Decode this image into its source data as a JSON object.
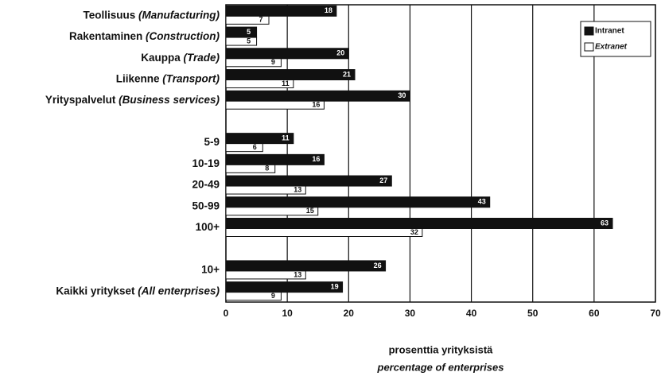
{
  "chart_data": {
    "type": "bar",
    "orientation": "horizontal",
    "categories": [
      {
        "fi": "Teollisuus",
        "en": "(Manufacturing)"
      },
      {
        "fi": "Rakentaminen",
        "en": "(Construction)"
      },
      {
        "fi": "Kauppa",
        "en": "(Trade)"
      },
      {
        "fi": "Liikenne",
        "en": "(Transport)"
      },
      {
        "fi": "Yrityspalvelut",
        "en": "(Business services)"
      },
      null,
      "5-9",
      "10-19",
      "20-49",
      "50-99",
      "100+",
      null,
      "10+",
      {
        "fi": "Kaikki yritykset",
        "en": "(All enterprises)"
      }
    ],
    "series": [
      {
        "name": "Intranet",
        "color": "#111111",
        "values": [
          18,
          5,
          20,
          21,
          30,
          null,
          11,
          16,
          27,
          43,
          63,
          null,
          26,
          19
        ]
      },
      {
        "name": "Extranet",
        "color": "#ffffff",
        "values": [
          7,
          5,
          9,
          11,
          16,
          null,
          6,
          8,
          13,
          15,
          32,
          null,
          13,
          9
        ]
      }
    ],
    "xlim": [
      0,
      70
    ],
    "xticks": [
      0,
      10,
      20,
      30,
      40,
      50,
      60,
      70
    ],
    "grid": true,
    "legend": "top-right",
    "xlabel": "prosenttia yrityksistä",
    "xlabel_en": "percentage of enterprises"
  }
}
